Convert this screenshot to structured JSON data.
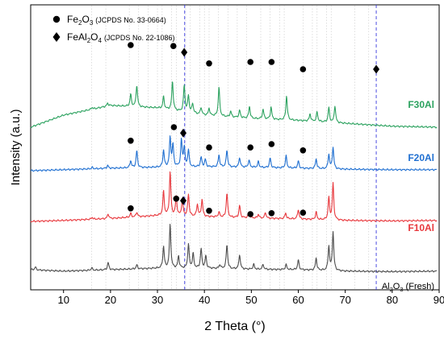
{
  "chart_data": {
    "type": "line",
    "xlabel": "2 Theta (°)",
    "ylabel": "Intensity (a.u.)",
    "xlim": [
      3,
      90
    ],
    "xticks": [
      10,
      20,
      30,
      40,
      50,
      60,
      70,
      80,
      90
    ],
    "grid": "dotted vertical reference lines at selected 2θ positions",
    "reference_lines_x": [
      16,
      19,
      24,
      26,
      28,
      30,
      31,
      33,
      34,
      36,
      37,
      39,
      40,
      41,
      43,
      45,
      47,
      49,
      52,
      54,
      56,
      57,
      61,
      63,
      64,
      66,
      67,
      72,
      75
    ],
    "dashed_lines_x": [
      35.8,
      76.6
    ],
    "legend": [
      {
        "marker": "circle",
        "label_main": "Fe",
        "sub1": "2",
        "label_mid": "O",
        "sub2": "3",
        "note": "(JCPDS No. 33-0664)"
      },
      {
        "marker": "diamond",
        "label_main": "FeAl",
        "sub1": "2",
        "label_mid": "O",
        "sub2": "4",
        "note": "(JCPDS No. 22-1086)"
      }
    ],
    "series": [
      {
        "name": "F30Al",
        "color": "#2ca25f",
        "offset": 3.0,
        "baseline": [
          [
            3,
            0.0
          ],
          [
            10,
            0.25
          ],
          [
            20,
            0.45
          ],
          [
            30,
            0.4
          ],
          [
            40,
            0.25
          ],
          [
            50,
            0.18
          ],
          [
            60,
            0.14
          ],
          [
            70,
            0.08
          ],
          [
            80,
            0.02
          ],
          [
            90,
            0.0
          ]
        ],
        "peaks": [
          [
            16.1,
            0.04
          ],
          [
            19.4,
            0.06
          ],
          [
            24.3,
            0.25
          ],
          [
            25.6,
            0.45
          ],
          [
            31.3,
            0.25
          ],
          [
            33.2,
            0.6
          ],
          [
            35.7,
            0.55
          ],
          [
            36.6,
            0.35
          ],
          [
            37.5,
            0.2
          ],
          [
            39.3,
            0.15
          ],
          [
            41.0,
            0.15
          ],
          [
            43.1,
            0.6
          ],
          [
            45.6,
            0.12
          ],
          [
            47.5,
            0.15
          ],
          [
            49.6,
            0.25
          ],
          [
            52.5,
            0.2
          ],
          [
            54.2,
            0.25
          ],
          [
            57.5,
            0.5
          ],
          [
            62.5,
            0.15
          ],
          [
            64.0,
            0.2
          ],
          [
            66.5,
            0.3
          ],
          [
            67.8,
            0.35
          ]
        ],
        "circles": [
          [
            24.3,
            1.7
          ],
          [
            33.4,
            1.68
          ],
          [
            41.0,
            1.32
          ],
          [
            49.8,
            1.35
          ],
          [
            54.3,
            1.35
          ],
          [
            61.0,
            1.2
          ]
        ],
        "diamonds": [
          [
            35.7,
            1.55
          ],
          [
            76.6,
            1.2
          ]
        ],
        "label": "F30Al"
      },
      {
        "name": "F20Al",
        "color": "#1f6fd1",
        "offset": 2.1,
        "baseline": [
          [
            3,
            0.0
          ],
          [
            10,
            0.02
          ],
          [
            20,
            0.05
          ],
          [
            30,
            0.07
          ],
          [
            40,
            0.08
          ],
          [
            50,
            0.07
          ],
          [
            60,
            0.05
          ],
          [
            70,
            0.03
          ],
          [
            80,
            0.02
          ],
          [
            90,
            0.02
          ]
        ],
        "peaks": [
          [
            16.1,
            0.03
          ],
          [
            19.4,
            0.06
          ],
          [
            24.3,
            0.15
          ],
          [
            25.6,
            0.35
          ],
          [
            31.3,
            0.35
          ],
          [
            32.7,
            0.6
          ],
          [
            33.3,
            0.45
          ],
          [
            35.1,
            0.55
          ],
          [
            35.7,
            0.4
          ],
          [
            36.6,
            0.35
          ],
          [
            39.3,
            0.2
          ],
          [
            40.2,
            0.15
          ],
          [
            43.1,
            0.25
          ],
          [
            44.8,
            0.35
          ],
          [
            47.5,
            0.2
          ],
          [
            49.5,
            0.15
          ],
          [
            51.5,
            0.12
          ],
          [
            54.0,
            0.2
          ],
          [
            57.4,
            0.25
          ],
          [
            60.0,
            0.15
          ],
          [
            63.8,
            0.2
          ],
          [
            66.5,
            0.3
          ],
          [
            67.4,
            0.45
          ]
        ],
        "circles": [
          [
            24.3,
            0.62
          ],
          [
            33.5,
            0.9
          ],
          [
            41.0,
            0.48
          ],
          [
            49.8,
            0.48
          ],
          [
            54.3,
            0.55
          ],
          [
            61.0,
            0.42
          ]
        ],
        "diamonds": [
          [
            35.5,
            0.78
          ]
        ],
        "label": "F20Al"
      },
      {
        "name": "F10Al",
        "color": "#e8383d",
        "offset": 1.05,
        "baseline": [
          [
            3,
            0.0
          ],
          [
            10,
            0.02
          ],
          [
            20,
            0.06
          ],
          [
            30,
            0.12
          ],
          [
            40,
            0.1
          ],
          [
            50,
            0.07
          ],
          [
            60,
            0.05
          ],
          [
            70,
            0.02
          ],
          [
            80,
            0.01
          ],
          [
            90,
            0.02
          ]
        ],
        "peaks": [
          [
            16.1,
            0.04
          ],
          [
            19.5,
            0.1
          ],
          [
            24.3,
            0.08
          ],
          [
            25.6,
            0.1
          ],
          [
            31.3,
            0.5
          ],
          [
            32.7,
            0.9
          ],
          [
            34.0,
            0.4
          ],
          [
            35.3,
            0.35
          ],
          [
            36.6,
            0.45
          ],
          [
            38.5,
            0.25
          ],
          [
            39.5,
            0.35
          ],
          [
            43.1,
            0.1
          ],
          [
            44.8,
            0.5
          ],
          [
            47.5,
            0.25
          ],
          [
            49.5,
            0.12
          ],
          [
            51.5,
            0.08
          ],
          [
            53.0,
            0.12
          ],
          [
            57.3,
            0.12
          ],
          [
            60.0,
            0.2
          ],
          [
            63.8,
            0.15
          ],
          [
            66.5,
            0.45
          ],
          [
            67.4,
            0.75
          ]
        ],
        "circles": [
          [
            24.3,
            0.27
          ],
          [
            34.0,
            0.47
          ],
          [
            41.0,
            0.22
          ],
          [
            49.8,
            0.15
          ],
          [
            54.3,
            0.17
          ],
          [
            61.0,
            0.18
          ]
        ],
        "diamonds": [
          [
            35.5,
            0.43
          ]
        ],
        "label": "F10Al"
      },
      {
        "name": "Al2O3 (Fresh)",
        "color": "#4d4d4d",
        "offset": 0.0,
        "baseline": [
          [
            3,
            0.05
          ],
          [
            10,
            0.02
          ],
          [
            20,
            0.05
          ],
          [
            30,
            0.08
          ],
          [
            40,
            0.08
          ],
          [
            50,
            0.06
          ],
          [
            60,
            0.05
          ],
          [
            70,
            0.02
          ],
          [
            80,
            0.01
          ],
          [
            90,
            0.02
          ]
        ],
        "peaks": [
          [
            4.0,
            0.06
          ],
          [
            16.0,
            0.05
          ],
          [
            19.5,
            0.15
          ],
          [
            25.6,
            0.08
          ],
          [
            31.3,
            0.45
          ],
          [
            32.7,
            0.9
          ],
          [
            34.5,
            0.25
          ],
          [
            36.6,
            0.5
          ],
          [
            37.6,
            0.3
          ],
          [
            39.3,
            0.4
          ],
          [
            40.3,
            0.25
          ],
          [
            43.3,
            0.08
          ],
          [
            44.8,
            0.5
          ],
          [
            47.5,
            0.3
          ],
          [
            50.5,
            0.1
          ],
          [
            52.5,
            0.1
          ],
          [
            57.4,
            0.1
          ],
          [
            60.0,
            0.2
          ],
          [
            63.8,
            0.25
          ],
          [
            66.5,
            0.5
          ],
          [
            67.4,
            0.8
          ]
        ],
        "circles": [],
        "diamonds": [],
        "label_main": "Al",
        "label_sub1": "2",
        "label_mid": "O",
        "label_sub2": "3",
        "label_rest": " (Fresh)"
      }
    ]
  }
}
